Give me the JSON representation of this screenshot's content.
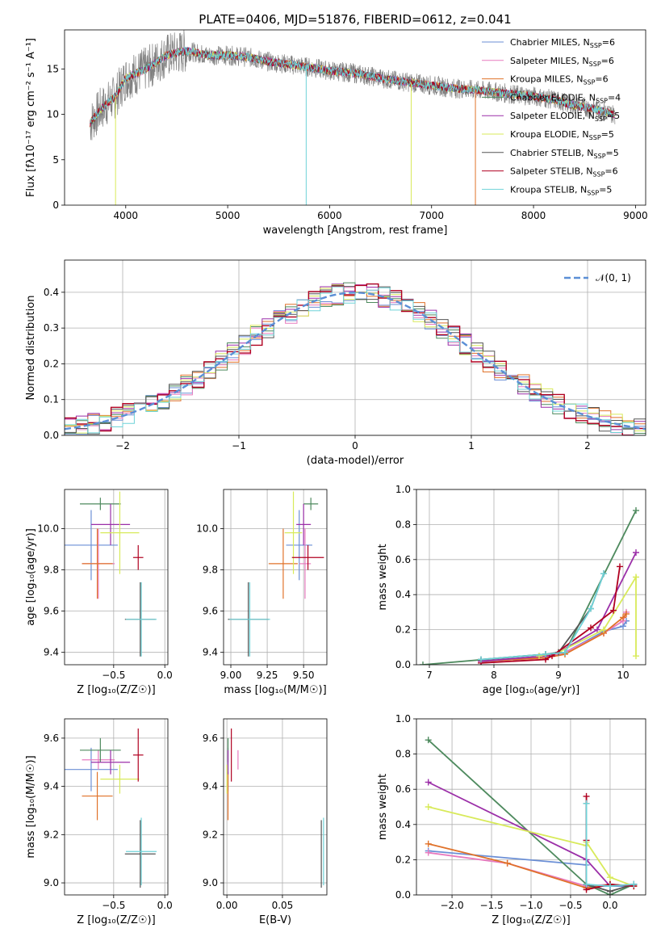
{
  "figure": {
    "title": "PLATE=0406, MJD=51876, FIBERID=0612, z=0.041"
  },
  "colors": {
    "Chabrier MILES": "#6b8fd6",
    "Salpeter MILES": "#e87bbf",
    "Kroupa MILES": "#e0722a",
    "Chabrier ELODIE": "#4e8a5e",
    "Salpeter ELODIE": "#9b2fa8",
    "Kroupa ELODIE": "#d8ea5a",
    "Chabrier STELIB": "#555555",
    "Salpeter STELIB": "#b00020",
    "Kroupa STELIB": "#6fd3d8",
    "gaussian": "#5b8fd6"
  },
  "chart_data": [
    {
      "type": "line",
      "title": "PLATE=0406, MJD=51876, FIBERID=0612, z=0.041",
      "xlabel": "wavelength [Angstrom, rest frame]",
      "ylabel": "Flux [fλ10⁻¹⁷ erg cm⁻² s⁻¹ A⁻¹]",
      "xlim": [
        3400,
        9100
      ],
      "ylim": [
        0,
        19.3
      ],
      "xticks": [
        4000,
        5000,
        6000,
        7000,
        8000,
        9000
      ],
      "yticks": [
        0,
        5,
        10,
        15
      ],
      "grid": false,
      "legend_position": "top-right",
      "legend": [
        {
          "label": "Chabrier MILES, N",
          "sub": "SSP",
          "suffix": "=6",
          "color": "#6b8fd6"
        },
        {
          "label": "Salpeter MILES, N",
          "sub": "SSP",
          "suffix": "=6",
          "color": "#e87bbf"
        },
        {
          "label": "Kroupa MILES, N",
          "sub": "SSP",
          "suffix": "=6",
          "color": "#e0722a"
        },
        {
          "label": "Chabrier ELODIE, N",
          "sub": "SSP",
          "suffix": "=4",
          "color": "#4e8a5e"
        },
        {
          "label": "Salpeter ELODIE, N",
          "sub": "SSP",
          "suffix": "=5",
          "color": "#9b2fa8"
        },
        {
          "label": "Kroupa ELODIE, N",
          "sub": "SSP",
          "suffix": "=5",
          "color": "#d8ea5a"
        },
        {
          "label": "Chabrier STELIB, N",
          "sub": "SSP",
          "suffix": "=5",
          "color": "#555555"
        },
        {
          "label": "Salpeter STELIB, N",
          "sub": "SSP",
          "suffix": "=6",
          "color": "#b00020"
        },
        {
          "label": "Kroupa STELIB, N",
          "sub": "SSP",
          "suffix": "=5",
          "color": "#6fd3d8"
        }
      ],
      "continuum": [
        [
          3650,
          9.0
        ],
        [
          3750,
          10.5
        ],
        [
          3900,
          12.0
        ],
        [
          4000,
          14.0
        ],
        [
          4200,
          15.0
        ],
        [
          4400,
          16.5
        ],
        [
          4600,
          17.0
        ],
        [
          4800,
          16.5
        ],
        [
          5000,
          16.5
        ],
        [
          5200,
          16.3
        ],
        [
          5400,
          15.8
        ],
        [
          5600,
          15.5
        ],
        [
          5800,
          15.2
        ],
        [
          6000,
          14.8
        ],
        [
          6200,
          14.6
        ],
        [
          6400,
          14.2
        ],
        [
          6600,
          13.8
        ],
        [
          6800,
          13.5
        ],
        [
          7000,
          13.2
        ],
        [
          7200,
          12.9
        ],
        [
          7400,
          12.7
        ],
        [
          7600,
          12.5
        ],
        [
          7800,
          12.2
        ],
        [
          8000,
          12.0
        ],
        [
          8200,
          11.6
        ],
        [
          8400,
          11.0
        ],
        [
          8600,
          10.6
        ],
        [
          8800,
          10.0
        ]
      ],
      "dropouts": [
        {
          "x": 3900,
          "color": "#d8ea5a"
        },
        {
          "x": 5770,
          "color": "#6fd3d8"
        },
        {
          "x": 6800,
          "color": "#d8ea5a"
        },
        {
          "x": 7430,
          "color": "#e0722a"
        }
      ]
    },
    {
      "type": "histogram",
      "xlabel": "(data-model)/error",
      "ylabel": "Normed distribution",
      "xlim": [
        -2.5,
        2.5
      ],
      "ylim": [
        0,
        0.49
      ],
      "xticks": [
        -2,
        -1,
        0,
        1,
        2
      ],
      "yticks": [
        0.0,
        0.1,
        0.2,
        0.3,
        0.4
      ],
      "grid": true,
      "legend_position": "top-right",
      "reference_curve": {
        "label": "𝒩(0, 1)",
        "mean": 0,
        "sigma": 1
      },
      "bin_width": 0.1
    },
    {
      "type": "scatter",
      "xlabel": "Z [log₁₀(Z/Z☉)]",
      "ylabel": "age  [log₁₀(age/yr)]",
      "xlim": [
        -0.98,
        0.03
      ],
      "ylim": [
        9.34,
        10.19
      ],
      "xticks": [
        -0.5,
        0.0
      ],
      "yticks": [
        9.4,
        9.6,
        9.8,
        10.0
      ],
      "grid": true,
      "points": [
        {
          "series": "Chabrier MILES",
          "x": -0.72,
          "y": 9.92,
          "xerr": 0.26,
          "yerr": 0.17
        },
        {
          "series": "Salpeter MILES",
          "x": -0.65,
          "y": 9.83,
          "xerr": 0.16,
          "yerr": 0.17
        },
        {
          "series": "Kroupa MILES",
          "x": -0.66,
          "y": 9.83,
          "xerr": 0.15,
          "yerr": 0.17
        },
        {
          "series": "Chabrier ELODIE",
          "x": -0.63,
          "y": 10.12,
          "xerr": 0.2,
          "yerr": 0.03
        },
        {
          "series": "Salpeter ELODIE",
          "x": -0.53,
          "y": 10.02,
          "xerr": 0.19,
          "yerr": 0.1
        },
        {
          "series": "Kroupa ELODIE",
          "x": -0.44,
          "y": 9.98,
          "xerr": 0.19,
          "yerr": 0.2
        },
        {
          "series": "Chabrier STELIB",
          "x": -0.24,
          "y": 9.56,
          "xerr": 0.15,
          "yerr": 0.18
        },
        {
          "series": "Salpeter STELIB",
          "x": -0.26,
          "y": 9.86,
          "xerr": 0.05,
          "yerr": 0.06
        },
        {
          "series": "Kroupa STELIB",
          "x": -0.23,
          "y": 9.56,
          "xerr": 0.15,
          "yerr": 0.18
        }
      ]
    },
    {
      "type": "scatter",
      "xlabel": "mass [log₁₀(M/M☉)]",
      "ylabel": "",
      "xlim": [
        8.95,
        9.66
      ],
      "ylim": [
        9.34,
        10.19
      ],
      "xticks": [
        9.0,
        9.25,
        9.5
      ],
      "yticks": [
        9.4,
        9.6,
        9.8,
        10.0
      ],
      "grid": true,
      "points": [
        {
          "series": "Chabrier MILES",
          "x": 9.47,
          "y": 9.92,
          "xerr": 0.09,
          "yerr": 0.17
        },
        {
          "series": "Salpeter MILES",
          "x": 9.51,
          "y": 9.83,
          "xerr": 0.04,
          "yerr": 0.17
        },
        {
          "series": "Kroupa MILES",
          "x": 9.36,
          "y": 9.83,
          "xerr": 0.1,
          "yerr": 0.17
        },
        {
          "series": "Chabrier ELODIE",
          "x": 9.55,
          "y": 10.12,
          "xerr": 0.05,
          "yerr": 0.03
        },
        {
          "series": "Salpeter ELODIE",
          "x": 9.5,
          "y": 10.02,
          "xerr": 0.05,
          "yerr": 0.1
        },
        {
          "series": "Kroupa ELODIE",
          "x": 9.43,
          "y": 9.98,
          "xerr": 0.06,
          "yerr": 0.2
        },
        {
          "series": "Chabrier STELIB",
          "x": 9.12,
          "y": 9.56,
          "xerr": 0.14,
          "yerr": 0.18
        },
        {
          "series": "Salpeter STELIB",
          "x": 9.53,
          "y": 9.86,
          "xerr": 0.11,
          "yerr": 0.06
        },
        {
          "series": "Kroupa STELIB",
          "x": 9.13,
          "y": 9.56,
          "xerr": 0.14,
          "yerr": 0.18
        }
      ]
    },
    {
      "type": "line",
      "xlabel": "age  [log₁₀(age/yr)]",
      "ylabel": "mass weight",
      "xlim": [
        6.8,
        10.35
      ],
      "ylim": [
        0,
        1.0
      ],
      "xticks": [
        7,
        8,
        9,
        10
      ],
      "yticks": [
        0.0,
        0.2,
        0.4,
        0.6,
        0.8,
        1.0
      ],
      "grid": true,
      "series": [
        {
          "name": "Chabrier MILES",
          "x": [
            7.8,
            8.8,
            9.1,
            9.7,
            10.0,
            10.05
          ],
          "y": [
            0.02,
            0.04,
            0.07,
            0.19,
            0.22,
            0.25
          ]
        },
        {
          "name": "Salpeter MILES",
          "x": [
            7.8,
            8.8,
            9.1,
            9.7,
            10.0,
            10.05
          ],
          "y": [
            0.02,
            0.04,
            0.07,
            0.18,
            0.25,
            0.3
          ]
        },
        {
          "name": "Kroupa MILES",
          "x": [
            7.8,
            8.8,
            9.1,
            9.7,
            10.0,
            10.05
          ],
          "y": [
            0.02,
            0.04,
            0.06,
            0.18,
            0.27,
            0.29
          ]
        },
        {
          "name": "Chabrier ELODIE",
          "x": [
            6.9,
            8.8,
            9.1,
            10.2
          ],
          "y": [
            0.0,
            0.06,
            0.07,
            0.88
          ]
        },
        {
          "name": "Salpeter ELODIE",
          "x": [
            7.8,
            8.8,
            9.0,
            9.6,
            10.2
          ],
          "y": [
            0.02,
            0.05,
            0.07,
            0.2,
            0.64
          ]
        },
        {
          "name": "Kroupa ELODIE",
          "x": [
            8.7,
            9.0,
            9.7,
            10.2,
            10.2
          ],
          "y": [
            0.05,
            0.07,
            0.2,
            0.5,
            0.05
          ]
        },
        {
          "name": "Chabrier STELIB",
          "x": [
            7.8,
            8.8,
            9.0,
            9.5,
            9.7
          ],
          "y": [
            0.03,
            0.06,
            0.07,
            0.32,
            0.52
          ]
        },
        {
          "name": "Salpeter STELIB",
          "x": [
            7.8,
            8.8,
            8.9,
            9.5,
            9.85,
            9.95
          ],
          "y": [
            0.01,
            0.03,
            0.05,
            0.21,
            0.31,
            0.56
          ]
        },
        {
          "name": "Kroupa STELIB",
          "x": [
            7.8,
            8.8,
            9.1,
            9.5,
            9.7
          ],
          "y": [
            0.03,
            0.06,
            0.07,
            0.32,
            0.52
          ]
        }
      ]
    },
    {
      "type": "scatter",
      "xlabel": "Z [log₁₀(Z/Z☉)]",
      "ylabel": "mass [log₁₀(M/M☉)]",
      "xlim": [
        -0.98,
        0.03
      ],
      "ylim": [
        8.95,
        9.68
      ],
      "xticks": [
        -0.5,
        0.0
      ],
      "yticks": [
        9.0,
        9.2,
        9.4,
        9.6
      ],
      "grid": true,
      "points": [
        {
          "series": "Chabrier MILES",
          "x": -0.72,
          "y": 9.47,
          "xerr": 0.26,
          "yerr": 0.09
        },
        {
          "series": "Salpeter MILES",
          "x": -0.65,
          "y": 9.51,
          "xerr": 0.16,
          "yerr": 0.04
        },
        {
          "series": "Kroupa MILES",
          "x": -0.66,
          "y": 9.36,
          "xerr": 0.15,
          "yerr": 0.1
        },
        {
          "series": "Chabrier ELODIE",
          "x": -0.63,
          "y": 9.55,
          "xerr": 0.2,
          "yerr": 0.05
        },
        {
          "series": "Salpeter ELODIE",
          "x": -0.53,
          "y": 9.5,
          "xerr": 0.19,
          "yerr": 0.05
        },
        {
          "series": "Kroupa ELODIE",
          "x": -0.44,
          "y": 9.43,
          "xerr": 0.19,
          "yerr": 0.06
        },
        {
          "series": "Chabrier STELIB",
          "x": -0.24,
          "y": 9.12,
          "xerr": 0.15,
          "yerr": 0.14
        },
        {
          "series": "Salpeter STELIB",
          "x": -0.26,
          "y": 9.53,
          "xerr": 0.05,
          "yerr": 0.11
        },
        {
          "series": "Kroupa STELIB",
          "x": -0.23,
          "y": 9.13,
          "xerr": 0.15,
          "yerr": 0.14
        }
      ]
    },
    {
      "type": "scatter",
      "xlabel": "E(B-V)",
      "ylabel": "",
      "xlim": [
        -0.003,
        0.09
      ],
      "ylim": [
        8.95,
        9.68
      ],
      "xticks": [
        0.0,
        0.05
      ],
      "yticks": [
        9.0,
        9.2,
        9.4,
        9.6
      ],
      "grid": true,
      "points": [
        {
          "series": "Chabrier MILES",
          "x": 0.001,
          "y": 9.47,
          "xerr": 0,
          "yerr": 0.09
        },
        {
          "series": "Salpeter MILES",
          "x": 0.01,
          "y": 9.51,
          "xerr": 0,
          "yerr": 0.04
        },
        {
          "series": "Kroupa MILES",
          "x": 0.001,
          "y": 9.36,
          "xerr": 0,
          "yerr": 0.1
        },
        {
          "series": "Chabrier ELODIE",
          "x": 0.001,
          "y": 9.55,
          "xerr": 0,
          "yerr": 0.05
        },
        {
          "series": "Salpeter ELODIE",
          "x": 0.001,
          "y": 9.5,
          "xerr": 0,
          "yerr": 0.05
        },
        {
          "series": "Kroupa ELODIE",
          "x": 0.0,
          "y": 9.43,
          "xerr": 0,
          "yerr": 0.06
        },
        {
          "series": "Chabrier STELIB",
          "x": 0.085,
          "y": 9.12,
          "xerr": 0,
          "yerr": 0.14
        },
        {
          "series": "Salpeter STELIB",
          "x": 0.004,
          "y": 9.53,
          "xerr": 0,
          "yerr": 0.11
        },
        {
          "series": "Kroupa STELIB",
          "x": 0.087,
          "y": 9.13,
          "xerr": 0,
          "yerr": 0.14
        }
      ]
    },
    {
      "type": "line",
      "xlabel": "Z [log₁₀(Z/Z☉)]",
      "ylabel": "mass weight",
      "xlim": [
        -2.45,
        0.45
      ],
      "ylim": [
        0,
        1.0
      ],
      "xticks": [
        -2.0,
        -1.5,
        -1.0,
        -0.5,
        0.0
      ],
      "yticks": [
        0.0,
        0.2,
        0.4,
        0.6,
        0.8,
        1.0
      ],
      "grid": true,
      "series": [
        {
          "name": "Chabrier MILES",
          "x": [
            -2.3,
            -0.3,
            -0.3,
            0.0,
            0.3
          ],
          "y": [
            0.25,
            0.17,
            0.05,
            0.05,
            0.05
          ]
        },
        {
          "name": "Salpeter MILES",
          "x": [
            -2.3,
            -1.3,
            -0.3,
            0.0,
            0.3
          ],
          "y": [
            0.24,
            0.18,
            0.05,
            0.06,
            0.05
          ]
        },
        {
          "name": "Kroupa MILES",
          "x": [
            -2.3,
            -1.3,
            -0.3,
            0.0,
            0.3
          ],
          "y": [
            0.29,
            0.18,
            0.04,
            0.06,
            0.05
          ]
        },
        {
          "name": "Chabrier ELODIE",
          "x": [
            -2.3,
            -0.3,
            0.0,
            0.3
          ],
          "y": [
            0.88,
            0.06,
            0.0,
            0.06
          ]
        },
        {
          "name": "Salpeter ELODIE",
          "x": [
            -2.3,
            -0.3,
            0.0,
            0.3
          ],
          "y": [
            0.64,
            0.2,
            0.05,
            0.06
          ]
        },
        {
          "name": "Kroupa ELODIE",
          "x": [
            -2.3,
            -0.3,
            -0.3,
            0.0,
            0.3
          ],
          "y": [
            0.5,
            0.28,
            0.3,
            0.1,
            0.05
          ]
        },
        {
          "name": "Chabrier STELIB",
          "x": [
            -0.3,
            -0.3,
            0.0,
            0.3
          ],
          "y": [
            0.52,
            0.06,
            0.02,
            0.06
          ]
        },
        {
          "name": "Salpeter STELIB",
          "x": [
            -0.3,
            -0.3,
            -0.3,
            0.0,
            0.3
          ],
          "y": [
            0.56,
            0.31,
            0.03,
            0.06,
            0.05
          ]
        },
        {
          "name": "Kroupa STELIB",
          "x": [
            -0.3,
            -0.3,
            0.0,
            0.3
          ],
          "y": [
            0.52,
            0.06,
            0.05,
            0.06
          ]
        }
      ]
    }
  ]
}
